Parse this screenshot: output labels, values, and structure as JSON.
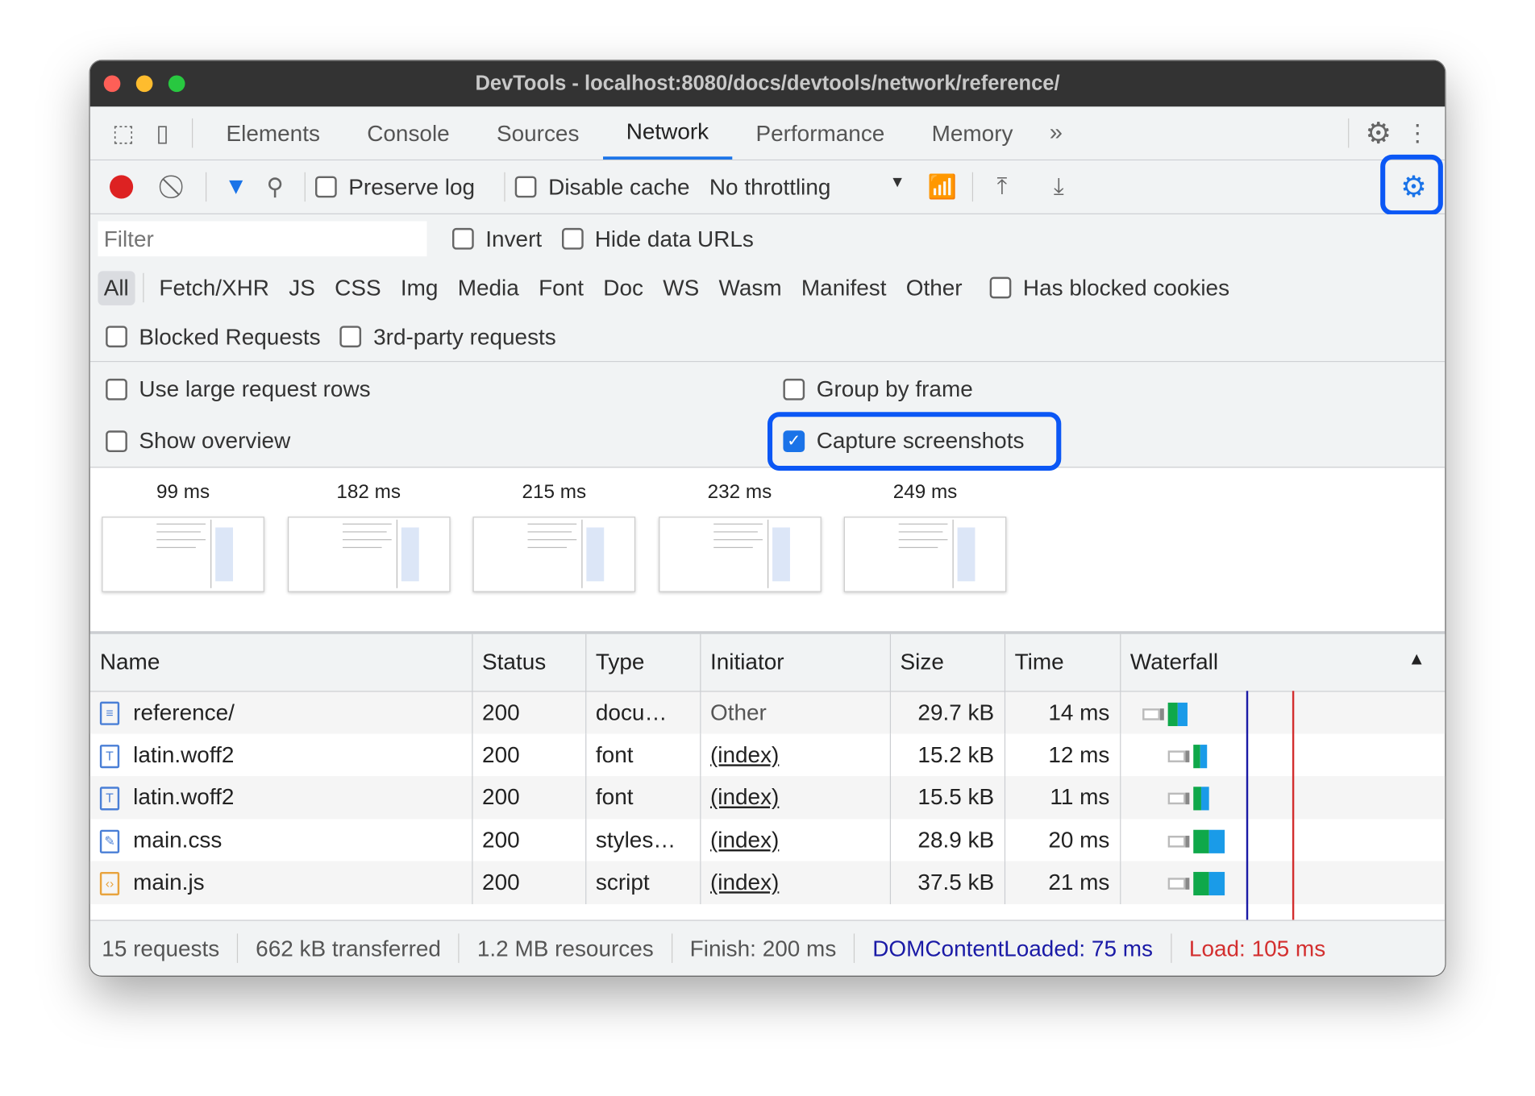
{
  "window": {
    "title": "DevTools - localhost:8080/docs/devtools/network/reference/"
  },
  "tabs": [
    "Elements",
    "Console",
    "Sources",
    "Network",
    "Performance",
    "Memory"
  ],
  "active_tab": "Network",
  "toolbar": {
    "preserve_log": "Preserve log",
    "disable_cache": "Disable cache",
    "throttling": "No throttling"
  },
  "filter": {
    "placeholder": "Filter",
    "invert": "Invert",
    "hide_data_urls": "Hide data URLs"
  },
  "types": [
    "All",
    "Fetch/XHR",
    "JS",
    "CSS",
    "Img",
    "Media",
    "Font",
    "Doc",
    "WS",
    "Wasm",
    "Manifest",
    "Other"
  ],
  "has_blocked_cookies": "Has blocked cookies",
  "blocked_requests": "Blocked Requests",
  "third_party": "3rd-party requests",
  "settings": {
    "large_rows": "Use large request rows",
    "group_by_frame": "Group by frame",
    "show_overview": "Show overview",
    "capture_screenshots": "Capture screenshots",
    "capture_checked": true
  },
  "screenshots": [
    "99 ms",
    "182 ms",
    "215 ms",
    "232 ms",
    "249 ms"
  ],
  "columns": [
    "Name",
    "Status",
    "Type",
    "Initiator",
    "Size",
    "Time",
    "Waterfall"
  ],
  "rows": [
    {
      "name": "reference/",
      "status": "200",
      "type": "docu…",
      "initiator": "Other",
      "size": "29.7 kB",
      "time": "14 ms",
      "icon": "document-icon"
    },
    {
      "name": "latin.woff2",
      "status": "200",
      "type": "font",
      "initiator": "(index)",
      "size": "15.2 kB",
      "time": "12 ms",
      "icon": "font-icon"
    },
    {
      "name": "latin.woff2",
      "status": "200",
      "type": "font",
      "initiator": "(index)",
      "size": "15.5 kB",
      "time": "11 ms",
      "icon": "font-icon"
    },
    {
      "name": "main.css",
      "status": "200",
      "type": "styles…",
      "initiator": "(index)",
      "size": "28.9 kB",
      "time": "20 ms",
      "icon": "stylesheet-icon"
    },
    {
      "name": "main.js",
      "status": "200",
      "type": "script",
      "initiator": "(index)",
      "size": "37.5 kB",
      "time": "21 ms",
      "icon": "script-icon"
    }
  ],
  "footer": {
    "requests": "15 requests",
    "transferred": "662 kB transferred",
    "resources": "1.2 MB resources",
    "finish": "Finish: 200 ms",
    "dcl": "DOMContentLoaded: 75 ms",
    "load": "Load: 105 ms"
  },
  "colors": {
    "accent": "#1a73e8",
    "dcl": "#1a1aa6",
    "load": "#d32f2f",
    "highlight": "#0b57f5"
  }
}
